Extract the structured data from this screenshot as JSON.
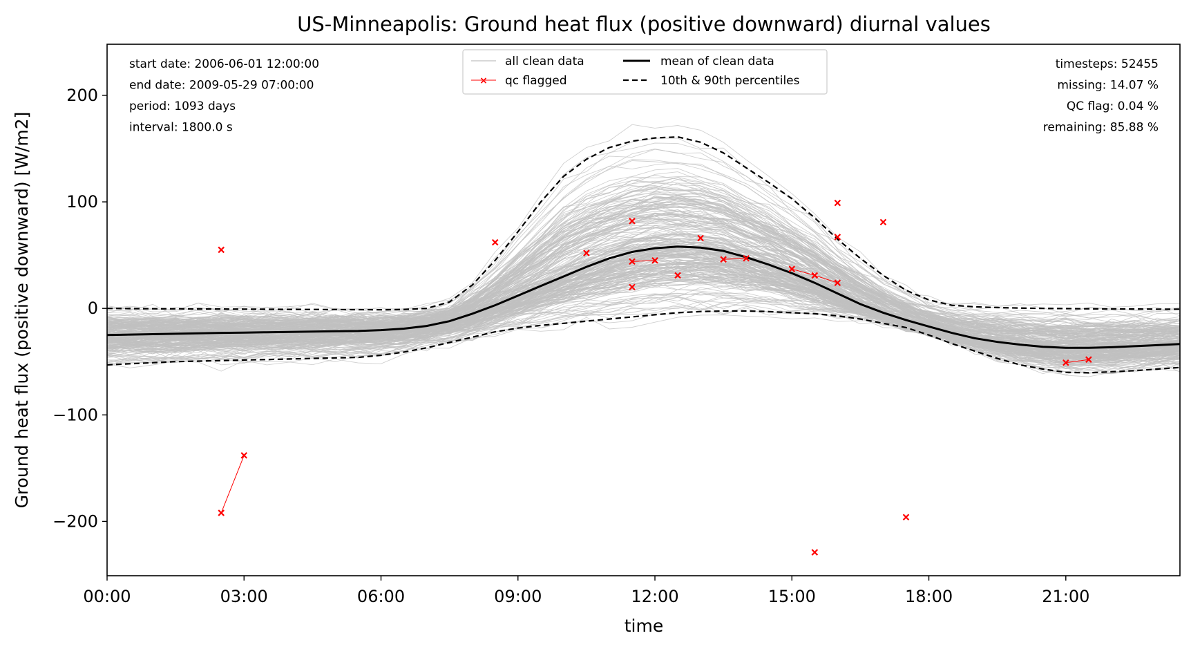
{
  "chart_data": {
    "type": "line",
    "title": "US-Minneapolis: Ground heat flux (positive downward) diurnal values",
    "xlabel": "time",
    "ylabel": "Ground heat flux (positive downward) [W/m2]",
    "xlim": [
      0,
      23.5
    ],
    "ylim": [
      -251,
      248
    ],
    "x_ticks": [
      {
        "value": 0,
        "label": "00:00"
      },
      {
        "value": 3,
        "label": "03:00"
      },
      {
        "value": 6,
        "label": "06:00"
      },
      {
        "value": 9,
        "label": "09:00"
      },
      {
        "value": 12,
        "label": "12:00"
      },
      {
        "value": 15,
        "label": "15:00"
      },
      {
        "value": 18,
        "label": "18:00"
      },
      {
        "value": 21,
        "label": "21:00"
      }
    ],
    "y_ticks": [
      {
        "value": 200,
        "label": "200"
      },
      {
        "value": 100,
        "label": "100"
      },
      {
        "value": 0,
        "label": "0"
      },
      {
        "value": -100,
        "label": "−100"
      },
      {
        "value": -200,
        "label": "−200"
      }
    ],
    "stats_left": [
      "start date: 2006-06-01 12:00:00",
      "end date: 2009-05-29 07:00:00",
      "period: 1093 days",
      "interval: 1800.0 s"
    ],
    "stats_right": [
      "timesteps: 52455",
      "missing: 14.07 %",
      "QC flag: 0.04 %",
      "remaining: 85.88 %"
    ],
    "legend": {
      "placement": "top-center",
      "entries": [
        "all clean data",
        "qc flagged",
        "mean of clean data",
        "10th & 90th percentiles"
      ]
    },
    "colors": {
      "clean": "#c0c0c0",
      "mean": "#000000",
      "percentile": "#000000",
      "flagged": "#ff0000"
    },
    "x": [
      0,
      0.5,
      1,
      1.5,
      2,
      2.5,
      3,
      3.5,
      4,
      4.5,
      5,
      5.5,
      6,
      6.5,
      7,
      7.5,
      8,
      8.5,
      9,
      9.5,
      10,
      10.5,
      11,
      11.5,
      12,
      12.5,
      13,
      13.5,
      14,
      14.5,
      15,
      15.5,
      16,
      16.5,
      17,
      17.5,
      18,
      18.5,
      19,
      19.5,
      20,
      20.5,
      21,
      21.5,
      22,
      22.5,
      23,
      23.5
    ],
    "series": [
      {
        "name": "mean of clean data",
        "style": "solid",
        "values": [
          -25,
          -24.6,
          -24.2,
          -23.8,
          -23.4,
          -23,
          -22.7,
          -22.4,
          -22.1,
          -21.8,
          -21.5,
          -21.2,
          -20.4,
          -19,
          -16.5,
          -12,
          -5,
          3,
          12,
          21,
          30,
          39,
          47,
          53,
          56.5,
          58,
          57,
          54,
          48,
          41,
          33,
          24,
          14,
          4,
          -4,
          -11,
          -17,
          -23,
          -28,
          -31.5,
          -34,
          -36,
          -37,
          -37,
          -36.5,
          -35.5,
          -34.5,
          -33.5
        ]
      },
      {
        "name": "10th & 90th percentiles",
        "style": "dashed",
        "band": "upper",
        "values": [
          0,
          -0.2,
          -0.3,
          -0.4,
          -0.5,
          -0.6,
          -0.7,
          -0.8,
          -0.9,
          -1,
          -1.1,
          -1.2,
          -1.3,
          -1,
          0,
          6,
          22,
          45,
          72,
          100,
          124,
          140,
          151,
          157,
          160,
          161,
          156,
          146,
          132,
          118,
          103,
          85,
          65,
          47,
          31,
          17,
          8,
          3,
          1.5,
          0.8,
          0.3,
          0,
          -0.2,
          -0.4,
          -0.5,
          -0.6,
          -0.7,
          -0.8
        ]
      },
      {
        "name": "10th & 90th percentiles",
        "style": "dashed",
        "band": "lower",
        "values": [
          -53,
          -52,
          -51,
          -50,
          -49.5,
          -49,
          -48.5,
          -48,
          -47.5,
          -47,
          -46.5,
          -46,
          -44,
          -41,
          -37,
          -32,
          -27,
          -22,
          -18.5,
          -16,
          -14,
          -12,
          -10,
          -8,
          -6,
          -4,
          -3,
          -2.5,
          -2.5,
          -3,
          -4,
          -5,
          -7,
          -10,
          -14,
          -18,
          -25,
          -33,
          -40,
          -47,
          -53,
          -57,
          -60,
          -60.5,
          -59.5,
          -58.5,
          -57,
          -55.5
        ]
      }
    ],
    "qc_flagged_points": [
      {
        "x": 2.5,
        "y": 55
      },
      {
        "x": 2.5,
        "y": -192
      },
      {
        "x": 3,
        "y": -138
      },
      {
        "x": 8.5,
        "y": 62
      },
      {
        "x": 10.5,
        "y": 52
      },
      {
        "x": 11.5,
        "y": 82
      },
      {
        "x": 11.5,
        "y": 44
      },
      {
        "x": 12,
        "y": 45
      },
      {
        "x": 11.5,
        "y": 20
      },
      {
        "x": 12.5,
        "y": 31
      },
      {
        "x": 13,
        "y": 66
      },
      {
        "x": 13.5,
        "y": 46
      },
      {
        "x": 14,
        "y": 47
      },
      {
        "x": 15,
        "y": 37
      },
      {
        "x": 15.5,
        "y": 31
      },
      {
        "x": 15.5,
        "y": -229
      },
      {
        "x": 16,
        "y": 99
      },
      {
        "x": 16,
        "y": 67
      },
      {
        "x": 16,
        "y": 24
      },
      {
        "x": 17,
        "y": 81
      },
      {
        "x": 17.5,
        "y": -196
      },
      {
        "x": 21,
        "y": -51
      },
      {
        "x": 21.5,
        "y": -48
      }
    ],
    "qc_flagged_segments": [
      [
        {
          "x": 2.5,
          "y": -192
        },
        {
          "x": 3,
          "y": -138
        }
      ],
      [
        {
          "x": 11.5,
          "y": 44
        },
        {
          "x": 12,
          "y": 45
        }
      ],
      [
        {
          "x": 13.5,
          "y": 46
        },
        {
          "x": 14,
          "y": 47
        }
      ],
      [
        {
          "x": 15,
          "y": 37
        },
        {
          "x": 15.5,
          "y": 31
        },
        {
          "x": 16,
          "y": 24
        }
      ],
      [
        {
          "x": 21,
          "y": -51
        },
        {
          "x": 21.5,
          "y": -48
        }
      ]
    ],
    "grid": false
  }
}
